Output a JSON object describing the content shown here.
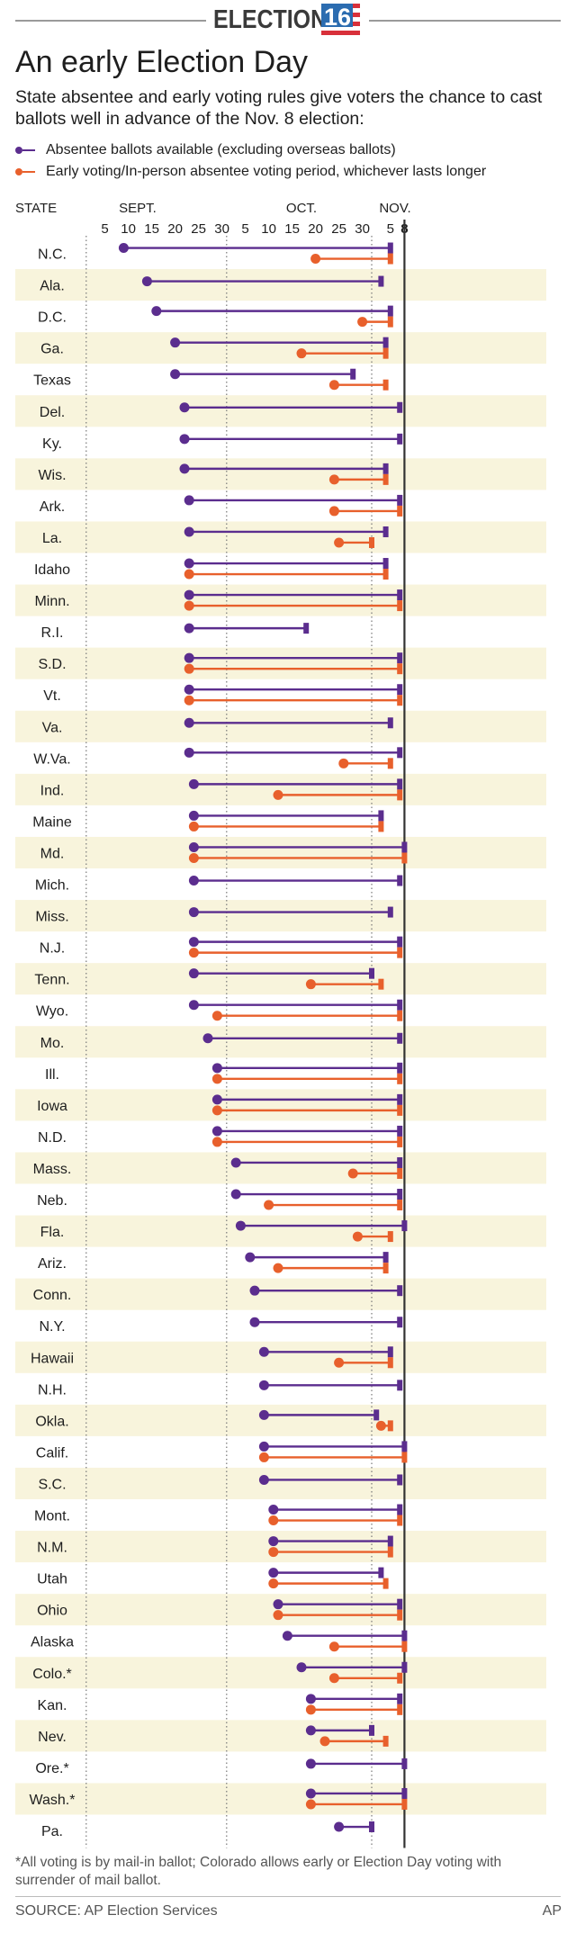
{
  "header": {
    "logo_word": "ELECTION",
    "logo_number": "16"
  },
  "title": "An early Election Day",
  "subtitle": "State absentee and early voting rules give voters the chance to cast ballots well in advance of the Nov. 8 election:",
  "legend": {
    "absentee": "Absentee ballots available (excluding overseas ballots)",
    "early": "Early voting/In-person absentee voting period, whichever lasts longer"
  },
  "colors": {
    "absentee": "#5b2d8e",
    "early": "#e8602c",
    "band": "#f8f4dc",
    "election_line": "#333333"
  },
  "footnote": "*All voting is by mail-in ballot; Colorado allows early or Election Day voting with surrender of mail ballot.",
  "source": "SOURCE: AP Election Services",
  "credit": "AP",
  "chart_data": {
    "type": "range-timeline",
    "state_header": "STATE",
    "date_axis": "calendar days, 2016, Sept. 1 to Nov. 8",
    "month_labels": [
      {
        "label": "SEPT.",
        "date": "Sept. 12"
      },
      {
        "label": "OCT.",
        "date": "Oct. 17"
      },
      {
        "label": "NOV.",
        "date": "Nov. 6"
      }
    ],
    "ticks": [
      {
        "label": "5",
        "date": "Sept. 5"
      },
      {
        "label": "10",
        "date": "Sept. 10"
      },
      {
        "label": "15",
        "date": "Sept. 15"
      },
      {
        "label": "20",
        "date": "Sept. 20"
      },
      {
        "label": "25",
        "date": "Sept. 25"
      },
      {
        "label": "30",
        "date": "Sept. 30"
      },
      {
        "label": "5",
        "date": "Oct. 5"
      },
      {
        "label": "10",
        "date": "Oct. 10"
      },
      {
        "label": "15",
        "date": "Oct. 15"
      },
      {
        "label": "20",
        "date": "Oct. 20"
      },
      {
        "label": "25",
        "date": "Oct. 25"
      },
      {
        "label": "30",
        "date": "Oct. 30"
      },
      {
        "label": "5",
        "date": "Nov. 5"
      },
      {
        "label": "8",
        "date": "Nov. 8"
      }
    ],
    "dotted_gridlines": [
      "Sept. 1",
      "Oct. 1",
      "Nov. 1"
    ],
    "series": [
      {
        "name": "Absentee ballots available (excluding overseas ballots)",
        "key": "absentee"
      },
      {
        "name": "Early voting/In-person absentee voting period, whichever lasts longer",
        "key": "early"
      }
    ],
    "states": [
      {
        "name": "N.C.",
        "absentee": [
          "Sept. 9",
          "Nov. 5"
        ],
        "early": [
          "Oct. 20",
          "Nov. 5"
        ]
      },
      {
        "name": "Ala.",
        "absentee": [
          "Sept. 14",
          "Nov. 3"
        ]
      },
      {
        "name": "D.C.",
        "absentee": [
          "Sept. 16",
          "Nov. 5"
        ],
        "early": [
          "Oct. 30",
          "Nov. 5"
        ]
      },
      {
        "name": "Ga.",
        "absentee": [
          "Sept. 20",
          "Nov. 4"
        ],
        "early": [
          "Oct. 17",
          "Nov. 4"
        ]
      },
      {
        "name": "Texas",
        "absentee": [
          "Sept. 20",
          "Oct. 28"
        ],
        "early": [
          "Oct. 24",
          "Nov. 4"
        ]
      },
      {
        "name": "Del.",
        "absentee": [
          "Sept. 22",
          "Nov. 7"
        ]
      },
      {
        "name": "Ky.",
        "absentee": [
          "Sept. 22",
          "Nov. 7"
        ]
      },
      {
        "name": "Wis.",
        "absentee": [
          "Sept. 22",
          "Nov. 4"
        ],
        "early": [
          "Oct. 24",
          "Nov. 4"
        ]
      },
      {
        "name": "Ark.",
        "absentee": [
          "Sept. 23",
          "Nov. 7"
        ],
        "early": [
          "Oct. 24",
          "Nov. 7"
        ]
      },
      {
        "name": "La.",
        "absentee": [
          "Sept. 23",
          "Nov. 4"
        ],
        "early": [
          "Oct. 25",
          "Nov. 1"
        ]
      },
      {
        "name": "Idaho",
        "absentee": [
          "Sept. 23",
          "Nov. 4"
        ],
        "early": [
          "Sept. 23",
          "Nov. 4"
        ]
      },
      {
        "name": "Minn.",
        "absentee": [
          "Sept. 23",
          "Nov. 7"
        ],
        "early": [
          "Sept. 23",
          "Nov. 7"
        ]
      },
      {
        "name": "R.I.",
        "absentee": [
          "Sept. 23",
          "Oct. 18"
        ]
      },
      {
        "name": "S.D.",
        "absentee": [
          "Sept. 23",
          "Nov. 7"
        ],
        "early": [
          "Sept. 23",
          "Nov. 7"
        ]
      },
      {
        "name": "Vt.",
        "absentee": [
          "Sept. 23",
          "Nov. 7"
        ],
        "early": [
          "Sept. 23",
          "Nov. 7"
        ]
      },
      {
        "name": "Va.",
        "absentee": [
          "Sept. 23",
          "Nov. 5"
        ]
      },
      {
        "name": "W.Va.",
        "absentee": [
          "Sept. 23",
          "Nov. 7"
        ],
        "early": [
          "Oct. 26",
          "Nov. 5"
        ]
      },
      {
        "name": "Ind.",
        "absentee": [
          "Sept. 24",
          "Nov. 7"
        ],
        "early": [
          "Oct. 12",
          "Nov. 7"
        ]
      },
      {
        "name": "Maine",
        "absentee": [
          "Sept. 24",
          "Nov. 3"
        ],
        "early": [
          "Sept. 24",
          "Nov. 3"
        ]
      },
      {
        "name": "Md.",
        "absentee": [
          "Sept. 24",
          "Nov. 8"
        ],
        "early": [
          "Sept. 24",
          "Nov. 8"
        ]
      },
      {
        "name": "Mich.",
        "absentee": [
          "Sept. 24",
          "Nov. 7"
        ]
      },
      {
        "name": "Miss.",
        "absentee": [
          "Sept. 24",
          "Nov. 5"
        ]
      },
      {
        "name": "N.J.",
        "absentee": [
          "Sept. 24",
          "Nov. 7"
        ],
        "early": [
          "Sept. 24",
          "Nov. 7"
        ]
      },
      {
        "name": "Tenn.",
        "absentee": [
          "Sept. 24",
          "Nov. 1"
        ],
        "early": [
          "Oct. 19",
          "Nov. 3"
        ]
      },
      {
        "name": "Wyo.",
        "absentee": [
          "Sept. 24",
          "Nov. 7"
        ],
        "early": [
          "Sept. 29",
          "Nov. 7"
        ]
      },
      {
        "name": "Mo.",
        "absentee": [
          "Sept. 27",
          "Nov. 7"
        ]
      },
      {
        "name": "Ill.",
        "absentee": [
          "Sept. 29",
          "Nov. 7"
        ],
        "early": [
          "Sept. 29",
          "Nov. 7"
        ]
      },
      {
        "name": "Iowa",
        "absentee": [
          "Sept. 29",
          "Nov. 7"
        ],
        "early": [
          "Sept. 29",
          "Nov. 7"
        ]
      },
      {
        "name": "N.D.",
        "absentee": [
          "Sept. 29",
          "Nov. 7"
        ],
        "early": [
          "Sept. 29",
          "Nov. 7"
        ]
      },
      {
        "name": "Mass.",
        "absentee": [
          "Oct. 3",
          "Nov. 7"
        ],
        "early": [
          "Oct. 28",
          "Nov. 7"
        ]
      },
      {
        "name": "Neb.",
        "absentee": [
          "Oct. 3",
          "Nov. 7"
        ],
        "early": [
          "Oct. 10",
          "Nov. 7"
        ]
      },
      {
        "name": "Fla.",
        "absentee": [
          "Oct. 4",
          "Nov. 8"
        ],
        "early": [
          "Oct. 29",
          "Nov. 5"
        ]
      },
      {
        "name": "Ariz.",
        "absentee": [
          "Oct. 6",
          "Nov. 4"
        ],
        "early": [
          "Oct. 12",
          "Nov. 4"
        ]
      },
      {
        "name": "Conn.",
        "absentee": [
          "Oct. 7",
          "Nov. 7"
        ]
      },
      {
        "name": "N.Y.",
        "absentee": [
          "Oct. 7",
          "Nov. 7"
        ]
      },
      {
        "name": "Hawaii",
        "absentee": [
          "Oct. 9",
          "Nov. 5"
        ],
        "early": [
          "Oct. 25",
          "Nov. 5"
        ]
      },
      {
        "name": "N.H.",
        "absentee": [
          "Oct. 9",
          "Nov. 7"
        ]
      },
      {
        "name": "Okla.",
        "absentee": [
          "Oct. 9",
          "Nov. 2"
        ],
        "early": [
          "Nov. 3",
          "Nov. 5"
        ]
      },
      {
        "name": "Calif.",
        "absentee": [
          "Oct. 9",
          "Nov. 8"
        ],
        "early": [
          "Oct. 9",
          "Nov. 8"
        ]
      },
      {
        "name": "S.C.",
        "absentee": [
          "Oct. 9",
          "Nov. 7"
        ]
      },
      {
        "name": "Mont.",
        "absentee": [
          "Oct. 11",
          "Nov. 7"
        ],
        "early": [
          "Oct. 11",
          "Nov. 7"
        ]
      },
      {
        "name": "N.M.",
        "absentee": [
          "Oct. 11",
          "Nov. 5"
        ],
        "early": [
          "Oct. 11",
          "Nov. 5"
        ]
      },
      {
        "name": "Utah",
        "absentee": [
          "Oct. 11",
          "Nov. 3"
        ],
        "early": [
          "Oct. 11",
          "Nov. 4"
        ]
      },
      {
        "name": "Ohio",
        "absentee": [
          "Oct. 12",
          "Nov. 7"
        ],
        "early": [
          "Oct. 12",
          "Nov. 7"
        ]
      },
      {
        "name": "Alaska",
        "absentee": [
          "Oct. 14",
          "Nov. 8"
        ],
        "early": [
          "Oct. 24",
          "Nov. 8"
        ]
      },
      {
        "name": "Colo.*",
        "absentee": [
          "Oct. 17",
          "Nov. 8"
        ],
        "early": [
          "Oct. 24",
          "Nov. 7"
        ]
      },
      {
        "name": "Kan.",
        "absentee": [
          "Oct. 19",
          "Nov. 7"
        ],
        "early": [
          "Oct. 19",
          "Nov. 7"
        ]
      },
      {
        "name": "Nev.",
        "absentee": [
          "Oct. 19",
          "Nov. 1"
        ],
        "early": [
          "Oct. 22",
          "Nov. 4"
        ]
      },
      {
        "name": "Ore.*",
        "absentee": [
          "Oct. 19",
          "Nov. 8"
        ]
      },
      {
        "name": "Wash.*",
        "absentee": [
          "Oct. 19",
          "Nov. 8"
        ],
        "early": [
          "Oct. 19",
          "Nov. 8"
        ]
      },
      {
        "name": "Pa.",
        "absentee": [
          "Oct. 25",
          "Nov. 1"
        ]
      }
    ]
  }
}
